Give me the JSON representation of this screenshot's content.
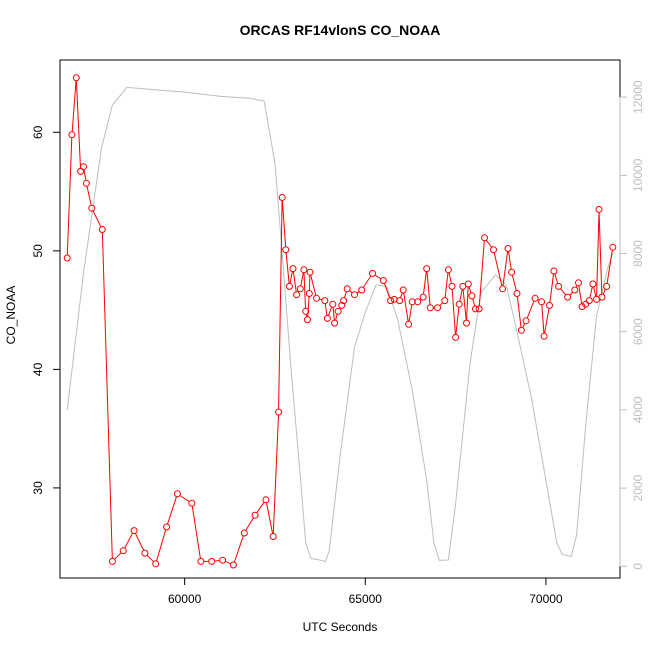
{
  "chart_data": {
    "type": "line",
    "title": "ORCAS RF14vlonS CO_NOAA",
    "xlabel": "UTC Seconds",
    "ylabel": "CO_NOAA",
    "xlim": [
      56550,
      72050
    ],
    "ylim": [
      22.4,
      66.1
    ],
    "y2lim": [
      -300,
      12950
    ],
    "x_ticks": [
      60000,
      65000,
      70000
    ],
    "x_tick_labels": [
      "60000",
      "65000",
      "70000"
    ],
    "y_ticks": [
      30,
      40,
      50,
      60
    ],
    "y_tick_labels": [
      "30",
      "40",
      "50",
      "60"
    ],
    "y2_ticks": [
      0,
      2000,
      4000,
      6000,
      8000,
      10000,
      12000
    ],
    "y2_tick_labels": [
      "0",
      "2000",
      "4000",
      "6000",
      "8000",
      "10000",
      "12000"
    ],
    "colors": {
      "primary": "#ff0000",
      "secondary": "#bebebe",
      "axis": "#000000",
      "axis_right": "#bdbdbd"
    },
    "series": [
      {
        "axis": "left",
        "style": "line+circle",
        "color": "#ff0000",
        "points": [
          [
            56750,
            49.4
          ],
          [
            56880,
            59.8
          ],
          [
            57000,
            64.6
          ],
          [
            57120,
            56.7
          ],
          [
            57200,
            57.1
          ],
          [
            57280,
            55.7
          ],
          [
            57430,
            53.6
          ],
          [
            57720,
            51.8
          ],
          [
            58000,
            23.8
          ],
          [
            58300,
            24.7
          ],
          [
            58600,
            26.4
          ],
          [
            58900,
            24.5
          ],
          [
            59200,
            23.6
          ],
          [
            59500,
            26.7
          ],
          [
            59800,
            29.5
          ],
          [
            60200,
            28.7
          ],
          [
            60450,
            23.8
          ],
          [
            60750,
            23.8
          ],
          [
            61050,
            23.9
          ],
          [
            61350,
            23.5
          ],
          [
            61650,
            26.2
          ],
          [
            61950,
            27.7
          ],
          [
            62250,
            29.0
          ],
          [
            62450,
            25.9
          ],
          [
            62600,
            36.4
          ],
          [
            62700,
            54.5
          ],
          [
            62800,
            50.1
          ],
          [
            62900,
            47.0
          ],
          [
            63000,
            48.5
          ],
          [
            63100,
            46.3
          ],
          [
            63200,
            46.8
          ],
          [
            63300,
            48.4
          ],
          [
            63350,
            44.9
          ],
          [
            63400,
            44.2
          ],
          [
            63450,
            46.4
          ],
          [
            63470,
            48.2
          ],
          [
            63650,
            46.0
          ],
          [
            63880,
            45.8
          ],
          [
            63950,
            44.3
          ],
          [
            64100,
            45.5
          ],
          [
            64150,
            43.9
          ],
          [
            64250,
            44.9
          ],
          [
            64350,
            45.4
          ],
          [
            64400,
            45.8
          ],
          [
            64500,
            46.8
          ],
          [
            64700,
            46.3
          ],
          [
            64900,
            46.7
          ],
          [
            65200,
            48.1
          ],
          [
            65500,
            47.5
          ],
          [
            65700,
            45.8
          ],
          [
            65800,
            45.9
          ],
          [
            65950,
            45.8
          ],
          [
            66050,
            46.7
          ],
          [
            66200,
            43.8
          ],
          [
            66300,
            45.7
          ],
          [
            66450,
            45.7
          ],
          [
            66600,
            46.1
          ],
          [
            66700,
            48.5
          ],
          [
            66800,
            45.2
          ],
          [
            67000,
            45.2
          ],
          [
            67200,
            45.8
          ],
          [
            67300,
            48.4
          ],
          [
            67400,
            47.0
          ],
          [
            67500,
            42.7
          ],
          [
            67600,
            45.5
          ],
          [
            67700,
            47.0
          ],
          [
            67800,
            43.9
          ],
          [
            67850,
            47.2
          ],
          [
            67950,
            46.2
          ],
          [
            68050,
            45.1
          ],
          [
            68150,
            45.1
          ],
          [
            68300,
            51.1
          ],
          [
            68550,
            50.1
          ],
          [
            68800,
            46.8
          ],
          [
            68950,
            50.2
          ],
          [
            69050,
            48.2
          ],
          [
            69200,
            46.4
          ],
          [
            69320,
            43.3
          ],
          [
            69450,
            44.1
          ],
          [
            69700,
            46.0
          ],
          [
            69880,
            45.7
          ],
          [
            69950,
            42.8
          ],
          [
            70100,
            45.4
          ],
          [
            70220,
            48.3
          ],
          [
            70350,
            47.0
          ],
          [
            70600,
            46.1
          ],
          [
            70800,
            46.7
          ],
          [
            70900,
            47.3
          ],
          [
            71000,
            45.3
          ],
          [
            71100,
            45.5
          ],
          [
            71200,
            45.8
          ],
          [
            71300,
            47.2
          ],
          [
            71400,
            45.9
          ],
          [
            71470,
            53.5
          ],
          [
            71550,
            46.1
          ],
          [
            71680,
            47.0
          ],
          [
            71850,
            50.3
          ]
        ]
      },
      {
        "axis": "right",
        "style": "line",
        "color": "#bebebe",
        "points": [
          [
            56750,
            4000
          ],
          [
            57200,
            7500
          ],
          [
            57700,
            10700
          ],
          [
            58000,
            11800
          ],
          [
            58400,
            12250
          ],
          [
            59000,
            12200
          ],
          [
            60000,
            12130
          ],
          [
            61000,
            12020
          ],
          [
            61800,
            11970
          ],
          [
            62200,
            11900
          ],
          [
            62500,
            10300
          ],
          [
            62700,
            8000
          ],
          [
            62950,
            5000
          ],
          [
            63200,
            2300
          ],
          [
            63350,
            600
          ],
          [
            63500,
            200
          ],
          [
            63700,
            170
          ],
          [
            63900,
            120
          ],
          [
            64000,
            400
          ],
          [
            64300,
            2800
          ],
          [
            64700,
            5600
          ],
          [
            65000,
            6500
          ],
          [
            65300,
            7200
          ],
          [
            65600,
            7150
          ],
          [
            65900,
            6300
          ],
          [
            66300,
            4500
          ],
          [
            66700,
            2200
          ],
          [
            66900,
            600
          ],
          [
            67050,
            150
          ],
          [
            67300,
            160
          ],
          [
            67500,
            1600
          ],
          [
            67900,
            5200
          ],
          [
            68200,
            7000
          ],
          [
            68600,
            7450
          ],
          [
            68900,
            7200
          ],
          [
            69200,
            6000
          ],
          [
            69600,
            4300
          ],
          [
            70000,
            2200
          ],
          [
            70300,
            600
          ],
          [
            70450,
            300
          ],
          [
            70700,
            250
          ],
          [
            70850,
            800
          ],
          [
            71100,
            3600
          ],
          [
            71400,
            6400
          ],
          [
            71700,
            7600
          ],
          [
            71850,
            8000
          ]
        ]
      }
    ]
  }
}
